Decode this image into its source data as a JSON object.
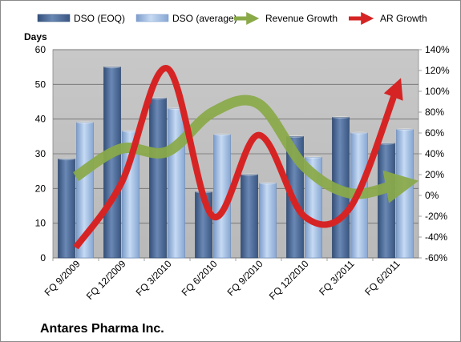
{
  "chart_data": {
    "type": "bar",
    "categories": [
      "FQ 9/2009",
      "FQ 12/2009",
      "FQ 3/2010",
      "FQ 6/2010",
      "FQ 9/2010",
      "FQ 12/2010",
      "FQ 3/2011",
      "FQ 6/2011"
    ],
    "series": [
      {
        "name": "DSO (EOQ)",
        "type": "bar",
        "axis": "left",
        "color": "#4f6d99",
        "values": [
          28.5,
          55,
          46,
          19,
          24,
          35,
          40.5,
          33
        ]
      },
      {
        "name": "DSO (average)",
        "type": "bar",
        "axis": "left",
        "color": "#9dbbe3",
        "values": [
          39,
          36.5,
          43,
          35.5,
          21.5,
          29,
          36,
          37
        ]
      },
      {
        "name": "Revenue Growth",
        "type": "line",
        "axis": "right",
        "color": "#8aaa48",
        "unit": "%",
        "values": [
          18,
          45,
          42,
          80,
          88,
          28,
          2,
          10
        ]
      },
      {
        "name": "AR Growth",
        "type": "line",
        "axis": "right",
        "color": "#d62424",
        "unit": "%",
        "values": [
          -50,
          12,
          122,
          -20,
          58,
          -20,
          -12,
          100
        ]
      }
    ],
    "ylabel": "Days",
    "ylim": [
      0,
      60
    ],
    "yticks": [
      0,
      10,
      20,
      30,
      40,
      50,
      60
    ],
    "y2lim": [
      -60,
      140
    ],
    "y2ticks": [
      "-60%",
      "-40%",
      "-20%",
      "0%",
      "20%",
      "40%",
      "60%",
      "80%",
      "100%",
      "120%",
      "140%"
    ],
    "y2values": [
      -60,
      -40,
      -20,
      0,
      20,
      40,
      60,
      80,
      100,
      120,
      140
    ],
    "grid": true,
    "legend": "top",
    "plot_background": "#bfbfbf"
  },
  "footer": {
    "company": "Antares Pharma Inc."
  }
}
